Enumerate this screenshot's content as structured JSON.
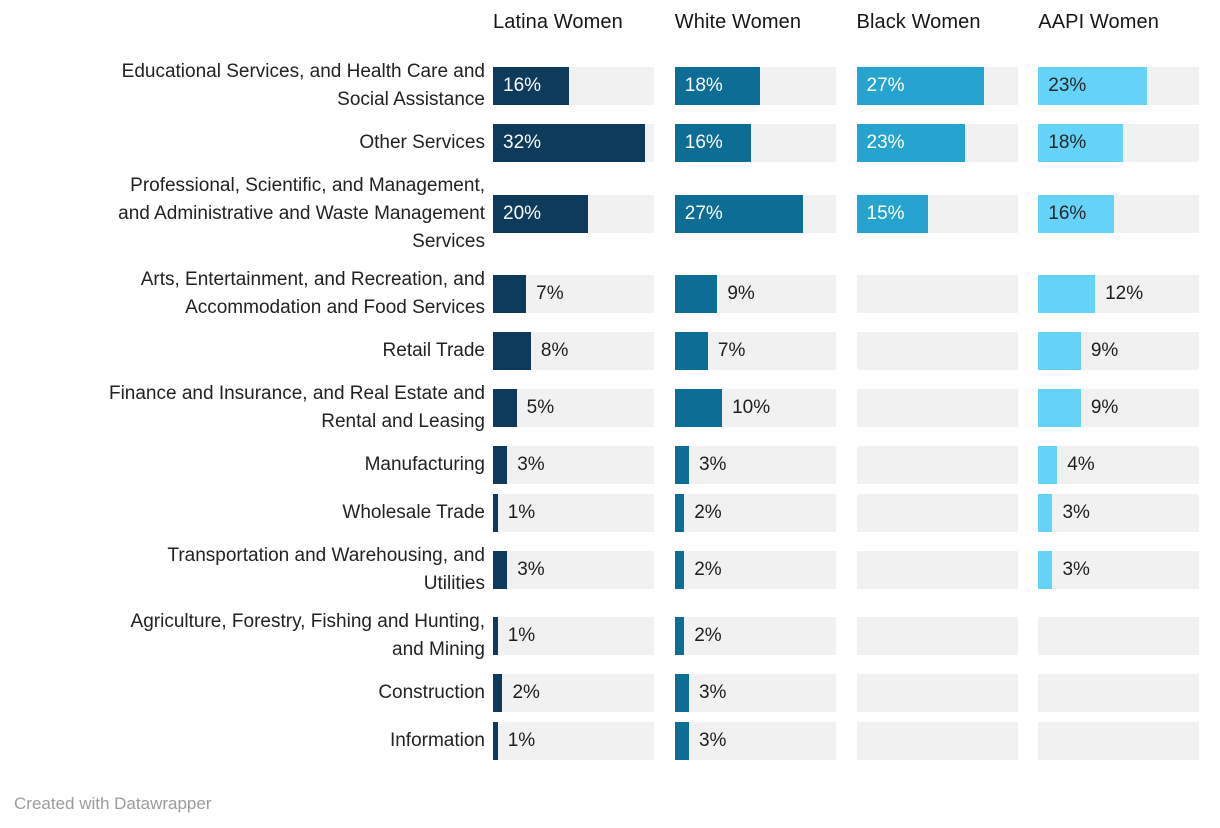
{
  "chart_data": {
    "type": "bar",
    "orientation": "horizontal",
    "layout": "small-multiple-columns",
    "title": "",
    "xlabel": "",
    "ylabel": "",
    "value_suffix": "%",
    "xmax": 34,
    "grid": false,
    "track_color": "#f1f1f1",
    "label_inside_threshold": 15,
    "inside_label_color_light_series": "#262626",
    "inside_label_color": "#ffffff",
    "outside_label_color": "#1d1d1d",
    "categories": [
      "Educational Services, and Health Care and\nSocial Assistance",
      "Other Services",
      "Professional, Scientific, and Management,\nand Administrative and Waste Management\nServices",
      "Arts, Entertainment, and Recreation, and\nAccommodation and Food Services",
      "Retail Trade",
      "Finance and Insurance, and Real Estate and\nRental and Leasing",
      "Manufacturing",
      "Wholesale Trade",
      "Transportation and Warehousing, and\nUtilities",
      "Agriculture, Forestry, Fishing and Hunting,\nand Mining",
      "Construction",
      "Information"
    ],
    "series": [
      {
        "name": "Latina Women",
        "color": "#0e3a5c",
        "light": false,
        "values": [
          16,
          32,
          20,
          7,
          8,
          5,
          3,
          1,
          3,
          1,
          2,
          1
        ]
      },
      {
        "name": "White Women",
        "color": "#0d6d94",
        "light": false,
        "values": [
          18,
          16,
          27,
          9,
          7,
          10,
          3,
          2,
          2,
          2,
          3,
          3
        ]
      },
      {
        "name": "Black Women",
        "color": "#26a3cf",
        "light": false,
        "values": [
          27,
          23,
          15,
          null,
          null,
          null,
          null,
          null,
          null,
          null,
          null,
          null
        ]
      },
      {
        "name": "AAPI Women",
        "color": "#65d3f8",
        "light": true,
        "values": [
          23,
          18,
          16,
          12,
          9,
          9,
          4,
          3,
          3,
          null,
          null,
          null
        ]
      }
    ]
  },
  "footer": {
    "credit": "Created with Datawrapper"
  }
}
